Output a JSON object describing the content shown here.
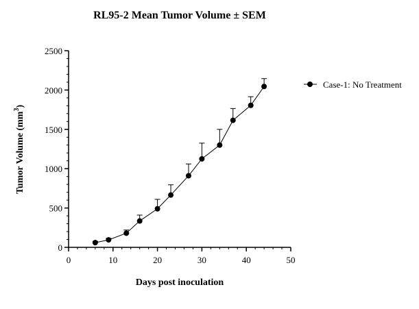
{
  "chart_data": {
    "type": "line",
    "title": "RL95-2 Mean Tumor Volume ± SEM",
    "xlabel": "Days post inoculation",
    "ylabel": "Tumor Volume (mm",
    "ylabel_superscript": "3",
    "ylabel_suffix": ")",
    "xlim": [
      0,
      50
    ],
    "ylim": [
      0,
      2500
    ],
    "x_ticks": [
      0,
      10,
      20,
      30,
      40,
      50
    ],
    "y_ticks": [
      0,
      500,
      1000,
      1500,
      2000,
      2500
    ],
    "grid": false,
    "legend_position": "right",
    "error_bars": "upper SEM",
    "series": [
      {
        "name": "Case-1: No Treatment",
        "color": "#000000",
        "marker": "filled-circle",
        "x": [
          6,
          9,
          13,
          16,
          20,
          23,
          27,
          30,
          34,
          37,
          41,
          44
        ],
        "y": [
          60,
          95,
          180,
          335,
          490,
          665,
          910,
          1125,
          1300,
          1615,
          1805,
          2045
        ],
        "sem": [
          15,
          20,
          40,
          75,
          120,
          130,
          150,
          200,
          200,
          150,
          110,
          100
        ]
      }
    ]
  }
}
